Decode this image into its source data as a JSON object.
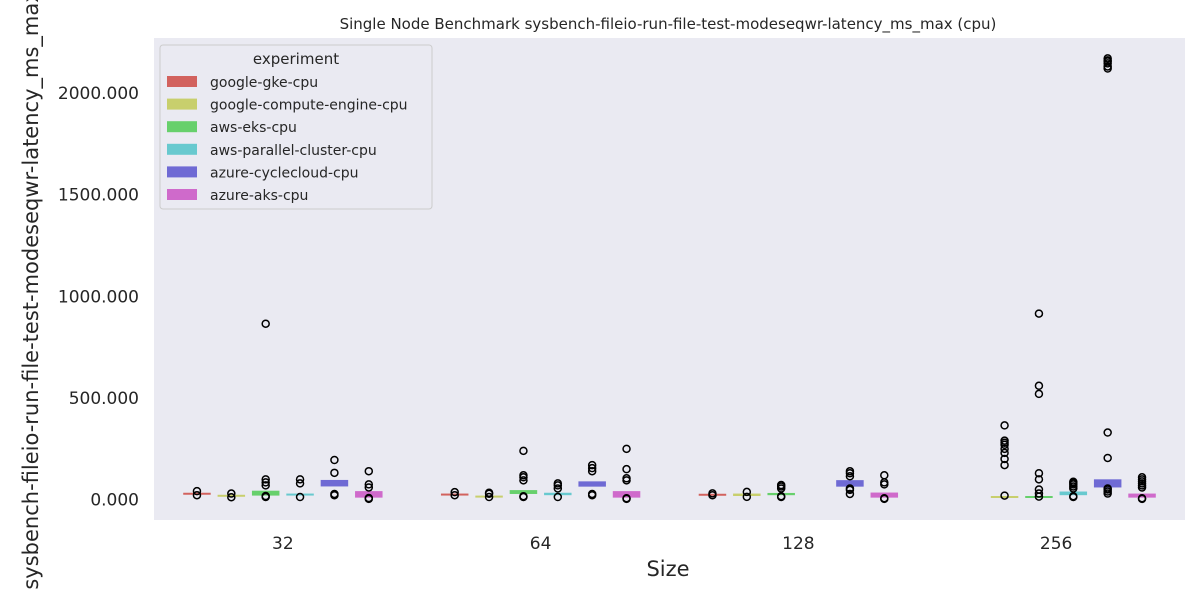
{
  "chart_data": {
    "type": "box",
    "title": "Single Node Benchmark sysbench-fileio-run-file-test-modeseqwr-latency_ms_max (cpu)",
    "xlabel": "Size",
    "ylabel": "sysbench-fileio-run-file-test-modeseqwr-latency_ms_max",
    "categories": [
      "32",
      "64",
      "128",
      "256"
    ],
    "yticks": [
      "0.000",
      "500.000",
      "1000.000",
      "1500.000",
      "2000.000"
    ],
    "ytick_values": [
      0,
      500,
      1000,
      1500,
      2000
    ],
    "ylim": [
      -100,
      2270
    ],
    "grid": false,
    "legend": {
      "title": "experiment",
      "placement": "top-left"
    },
    "colors": {
      "google-gke-cpu": "#d2625e",
      "google-compute-engine-cpu": "#c8cf6d",
      "aws-eks-cpu": "#67d06c",
      "aws-parallel-cluster-cpu": "#68c9cf",
      "azure-cyclecloud-cpu": "#6f6ad4",
      "azure-aks-cpu": "#cf6acb"
    },
    "series": [
      {
        "name": "google-gke-cpu",
        "boxes": [
          {
            "q1": 28,
            "q3": 34,
            "outliers": [
              22,
              42
            ]
          },
          {
            "q1": 26,
            "q3": 30,
            "outliers": [
              22,
              37
            ]
          },
          {
            "q1": 26,
            "q3": 29,
            "outliers": [
              22,
              31
            ]
          },
          null
        ]
      },
      {
        "name": "google-compute-engine-cpu",
        "boxes": [
          {
            "q1": 20,
            "q3": 24,
            "outliers": [
              12,
              30
            ]
          },
          {
            "q1": 14,
            "q3": 20,
            "outliers": [
              13,
              29,
              34
            ]
          },
          {
            "q1": 18,
            "q3": 30,
            "outliers": [
              14,
              38
            ]
          },
          {
            "q1": 12,
            "q3": 18,
            "outliers": [
              20,
              170,
              200,
              230,
              250,
              270,
              280,
              290,
              365
            ]
          }
        ]
      },
      {
        "name": "aws-eks-cpu",
        "boxes": [
          {
            "q1": 20,
            "q3": 44,
            "outliers": [
              13,
              18,
              70,
              85,
              100,
              865
            ]
          },
          {
            "q1": 28,
            "q3": 47,
            "outliers": [
              13,
              17,
              95,
              110,
              120,
              240
            ]
          },
          {
            "q1": 22,
            "q3": 33,
            "outliers": [
              13,
              17,
              55,
              65,
              72
            ]
          },
          {
            "q1": 10,
            "q3": 18,
            "outliers": [
              15,
              30,
              50,
              100,
              130,
              520,
              560,
              915
            ]
          }
        ]
      },
      {
        "name": "aws-parallel-cluster-cpu",
        "boxes": [
          {
            "q1": 22,
            "q3": 30,
            "outliers": [
              13,
              80,
              100
            ]
          },
          {
            "q1": 22,
            "q3": 34,
            "outliers": [
              13,
              55,
              70,
              80
            ]
          },
          null,
          {
            "q1": 22,
            "q3": 40,
            "outliers": [
              13,
              17,
              55,
              65,
              75,
              82,
              88
            ]
          }
        ]
      },
      {
        "name": "azure-cyclecloud-cpu",
        "boxes": [
          {
            "q1": 65,
            "q3": 97,
            "outliers": [
              22,
              28,
              132,
              195
            ]
          },
          {
            "q1": 64,
            "q3": 90,
            "outliers": [
              22,
              28,
              140,
              155,
              170
            ]
          },
          {
            "q1": 64,
            "q3": 96,
            "outliers": [
              28,
              48,
              55,
              115,
              130,
              140
            ]
          },
          {
            "q1": 60,
            "q3": 100,
            "outliers": [
              30,
              40,
              50,
              55,
              205,
              330,
              2120,
              2130,
              2145,
              2155,
              2160,
              2170
            ]
          }
        ]
      },
      {
        "name": "azure-aks-cpu",
        "boxes": [
          {
            "q1": 10,
            "q3": 42,
            "outliers": [
              4,
              8,
              60,
              75,
              140
            ]
          },
          {
            "q1": 10,
            "q3": 42,
            "outliers": [
              4,
              7,
              95,
              105,
              150,
              250
            ]
          },
          {
            "q1": 10,
            "q3": 35,
            "outliers": [
              4,
              7,
              75,
              85,
              120
            ]
          },
          {
            "q1": 10,
            "q3": 30,
            "outliers": [
              4,
              7,
              60,
              70,
              80,
              90,
              100,
              110
            ]
          }
        ]
      }
    ]
  }
}
